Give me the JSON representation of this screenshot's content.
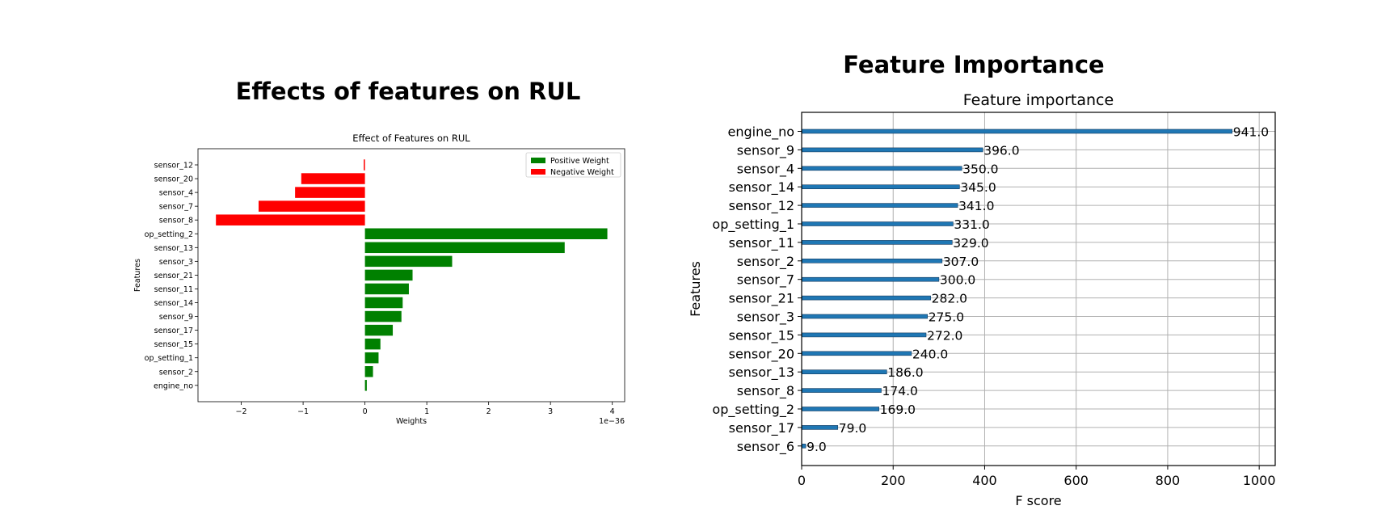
{
  "left_panel": {
    "heading": "Effects of features on RUL"
  },
  "right_panel": {
    "heading": "Feature Importance"
  },
  "chart_data": [
    {
      "type": "bar",
      "orientation": "horizontal",
      "title": "Effect of Features on RUL",
      "xlabel": "Weights",
      "ylabel": "Features",
      "x_scale_note": "1e−36",
      "xlim": [
        -2.7,
        4.2
      ],
      "xticks": [
        -2,
        -1,
        0,
        1,
        2,
        3,
        4
      ],
      "xtick_labels": [
        "−2",
        "−1",
        "0",
        "1",
        "2",
        "3",
        "4"
      ],
      "categories": [
        "sensor_12",
        "sensor_20",
        "sensor_4",
        "sensor_7",
        "sensor_8",
        "op_setting_2",
        "sensor_13",
        "sensor_3",
        "sensor_21",
        "sensor_11",
        "sensor_14",
        "sensor_9",
        "sensor_17",
        "sensor_15",
        "op_setting_1",
        "sensor_2",
        "engine_no"
      ],
      "values": [
        -0.02,
        -1.03,
        -1.13,
        -1.72,
        -2.41,
        3.92,
        3.23,
        1.41,
        0.77,
        0.71,
        0.61,
        0.59,
        0.45,
        0.25,
        0.22,
        0.13,
        0.03
      ],
      "legend": [
        {
          "name": "Positive Weight",
          "color": "#008000"
        },
        {
          "name": "Negative Weight",
          "color": "#ff0000"
        }
      ],
      "legend_position": "top-right",
      "colors": {
        "positive": "#008000",
        "negative": "#ff0000"
      },
      "grid": false
    },
    {
      "type": "bar",
      "orientation": "horizontal",
      "title": "Feature importance",
      "xlabel": "F score",
      "ylabel": "Features",
      "xlim": [
        0,
        1035
      ],
      "xticks": [
        0,
        200,
        400,
        600,
        800,
        1000
      ],
      "xtick_labels": [
        "0",
        "200",
        "400",
        "600",
        "800",
        "1000"
      ],
      "categories": [
        "engine_no",
        "sensor_9",
        "sensor_4",
        "sensor_14",
        "sensor_12",
        "op_setting_1",
        "sensor_11",
        "sensor_2",
        "sensor_7",
        "sensor_21",
        "sensor_3",
        "sensor_15",
        "sensor_20",
        "sensor_13",
        "sensor_8",
        "op_setting_2",
        "sensor_17",
        "sensor_6"
      ],
      "values": [
        941.0,
        396.0,
        350.0,
        345.0,
        341.0,
        331.0,
        329.0,
        307.0,
        300.0,
        282.0,
        275.0,
        272.0,
        240.0,
        186.0,
        174.0,
        169.0,
        79.0,
        9.0
      ],
      "data_labels": [
        "941.0",
        "396.0",
        "350.0",
        "345.0",
        "341.0",
        "331.0",
        "329.0",
        "307.0",
        "300.0",
        "282.0",
        "275.0",
        "272.0",
        "240.0",
        "186.0",
        "174.0",
        "169.0",
        "79.0",
        "9.0"
      ],
      "colors": {
        "bar": "#1f77b4"
      },
      "grid": true
    }
  ]
}
